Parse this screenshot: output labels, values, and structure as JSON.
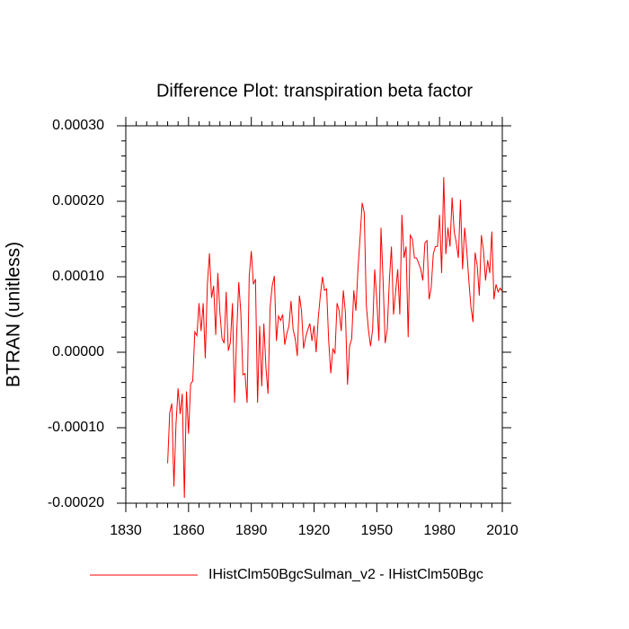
{
  "chart_data": {
    "type": "line",
    "title": "Difference Plot: transpiration beta factor",
    "y_label": "BTRAN  (unitless)",
    "x": [
      1850,
      1851,
      1852,
      1853,
      1854,
      1855,
      1856,
      1857,
      1858,
      1859,
      1860,
      1861,
      1862,
      1863,
      1864,
      1865,
      1866,
      1867,
      1868,
      1869,
      1870,
      1871,
      1872,
      1873,
      1874,
      1875,
      1876,
      1877,
      1878,
      1879,
      1880,
      1881,
      1882,
      1883,
      1884,
      1885,
      1886,
      1887,
      1888,
      1889,
      1890,
      1891,
      1892,
      1893,
      1894,
      1895,
      1896,
      1897,
      1898,
      1899,
      1900,
      1901,
      1902,
      1903,
      1904,
      1905,
      1906,
      1907,
      1908,
      1909,
      1910,
      1911,
      1912,
      1913,
      1914,
      1915,
      1916,
      1917,
      1918,
      1919,
      1920,
      1921,
      1922,
      1923,
      1924,
      1925,
      1926,
      1927,
      1928,
      1929,
      1930,
      1931,
      1932,
      1933,
      1934,
      1935,
      1936,
      1937,
      1938,
      1939,
      1940,
      1941,
      1942,
      1943,
      1944,
      1945,
      1946,
      1947,
      1948,
      1949,
      1950,
      1951,
      1952,
      1953,
      1954,
      1955,
      1956,
      1957,
      1958,
      1959,
      1960,
      1961,
      1962,
      1963,
      1964,
      1965,
      1966,
      1967,
      1968,
      1969,
      1970,
      1971,
      1972,
      1973,
      1974,
      1975,
      1976,
      1977,
      1978,
      1979,
      1980,
      1981,
      1982,
      1983,
      1984,
      1985,
      1986,
      1987,
      1988,
      1989,
      1990,
      1991,
      1992,
      1993,
      1994,
      1995,
      1996,
      1997,
      1998,
      1999,
      2000,
      2001,
      2002,
      2003,
      2004,
      2005,
      2006,
      2007,
      2008,
      2009,
      2010
    ],
    "series": [
      {
        "name": "IHistClm50BgcSulman_v2 - IHistClm50Bgc",
        "color": "#ff0000",
        "values": [
          -0.000147,
          -8e-05,
          -6.8e-05,
          -0.000178,
          -9.5e-05,
          -4.8e-05,
          -8.2e-05,
          -5.5e-05,
          -0.000193,
          -5.2e-05,
          -0.000108,
          -4.2e-05,
          -3.8e-05,
          2.7e-05,
          2.2e-05,
          6.5e-05,
          2.8e-05,
          6.5e-05,
          -8e-06,
          9e-05,
          0.000131,
          7.2e-05,
          8.8e-05,
          2.3e-05,
          0.000105,
          5.2e-05,
          1.8e-05,
          1.2e-05,
          8e-05,
          2e-06,
          1.3e-05,
          6.5e-05,
          -6.7e-05,
          2.3e-05,
          9.3e-05,
          5.2e-05,
          -3e-05,
          -2.8e-05,
          -6.7e-05,
          0.0001,
          0.000134,
          9e-05,
          9.7e-05,
          -6.7e-05,
          3.5e-05,
          -4.5e-05,
          3.8e-05,
          -2e-05,
          -5.5e-05,
          6e-05,
          8.8e-05,
          0.000101,
          1.5e-05,
          4.8e-05,
          4.2e-05,
          5e-05,
          1e-05,
          2.5e-05,
          3.5e-05,
          6.8e-05,
          3e-05,
          1.8e-05,
          -5e-06,
          7.5e-05,
          5.5e-05,
          5e-06,
          2e-05,
          3e-05,
          3.8e-05,
          1.5e-05,
          3.5e-05,
          0,
          4.5e-05,
          7.5e-05,
          0.0001,
          8.2e-05,
          8.4e-05,
          1.5e-05,
          -2.8e-05,
          5e-06,
          -2e-06,
          6.5e-05,
          5.5e-05,
          2.8e-05,
          8.2e-05,
          5.2e-05,
          -4.3e-05,
          8e-06,
          1.8e-05,
          8.2e-05,
          5.5e-05,
          0.00011,
          0.000152,
          0.000198,
          0.000185,
          6.2e-05,
          3e-05,
          8e-06,
          3e-05,
          0.00011,
          7e-05,
          1.5e-05,
          0.000165,
          9.5e-05,
          1.2e-05,
          3e-05,
          9.5e-05,
          0.00014,
          5e-05,
          8e-05,
          0.00011,
          5e-05,
          0.000182,
          0.000125,
          0.00014,
          2e-05,
          0.000155,
          0.00015,
          0.000125,
          0.000125,
          0.000118,
          0.00011,
          9.5e-05,
          0.000145,
          0.000148,
          7e-05,
          8.5e-05,
          0.00013,
          0.00014,
          0.00014,
          0.000182,
          0.000105,
          0.000232,
          0.00013,
          0.000165,
          0.00014,
          0.000205,
          0.00016,
          0.000145,
          0.000125,
          0.000202,
          0.00011,
          0.000165,
          0.000135,
          9.5e-05,
          6e-05,
          4e-05,
          0.000132,
          0.000115,
          7.5e-05,
          0.000155,
          0.000135,
          9.5e-05,
          0.000122,
          0.000105,
          0.00016,
          7e-05,
          9e-05,
          8e-05,
          8.5e-05,
          8e-05
        ]
      }
    ],
    "xlim": [
      1830,
      2010
    ],
    "xticks": [
      1830,
      1860,
      1890,
      1920,
      1950,
      1980,
      2010
    ],
    "ylim": [
      -0.0002,
      0.0003
    ],
    "yticks": [
      {
        "value": -0.0002,
        "label": "-0.00020"
      },
      {
        "value": -0.0001,
        "label": "-0.00010"
      },
      {
        "value": 0,
        "label": "0.00000"
      },
      {
        "value": 0.0001,
        "label": "0.00010"
      },
      {
        "value": 0.0002,
        "label": "0.00020"
      },
      {
        "value": 0.0003,
        "label": "0.00030"
      }
    ],
    "legend": "bottom"
  }
}
